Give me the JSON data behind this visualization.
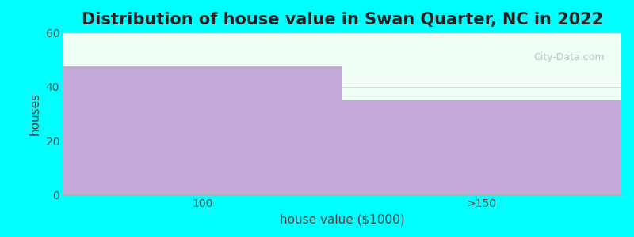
{
  "title": "Distribution of house value in Swan Quarter, NC in 2022",
  "xlabel": "house value ($1000)",
  "ylabel": "houses",
  "categories": [
    "100",
    ">150"
  ],
  "values": [
    48,
    35
  ],
  "bar_color": "#C4A8D8",
  "ylim": [
    0,
    60
  ],
  "yticks": [
    0,
    20,
    40,
    60
  ],
  "background_outer": "#00FFFF",
  "background_inner": "#F0FFF4",
  "title_fontsize": 15,
  "label_fontsize": 11,
  "tick_fontsize": 10,
  "watermark_text": "City-Data.com"
}
